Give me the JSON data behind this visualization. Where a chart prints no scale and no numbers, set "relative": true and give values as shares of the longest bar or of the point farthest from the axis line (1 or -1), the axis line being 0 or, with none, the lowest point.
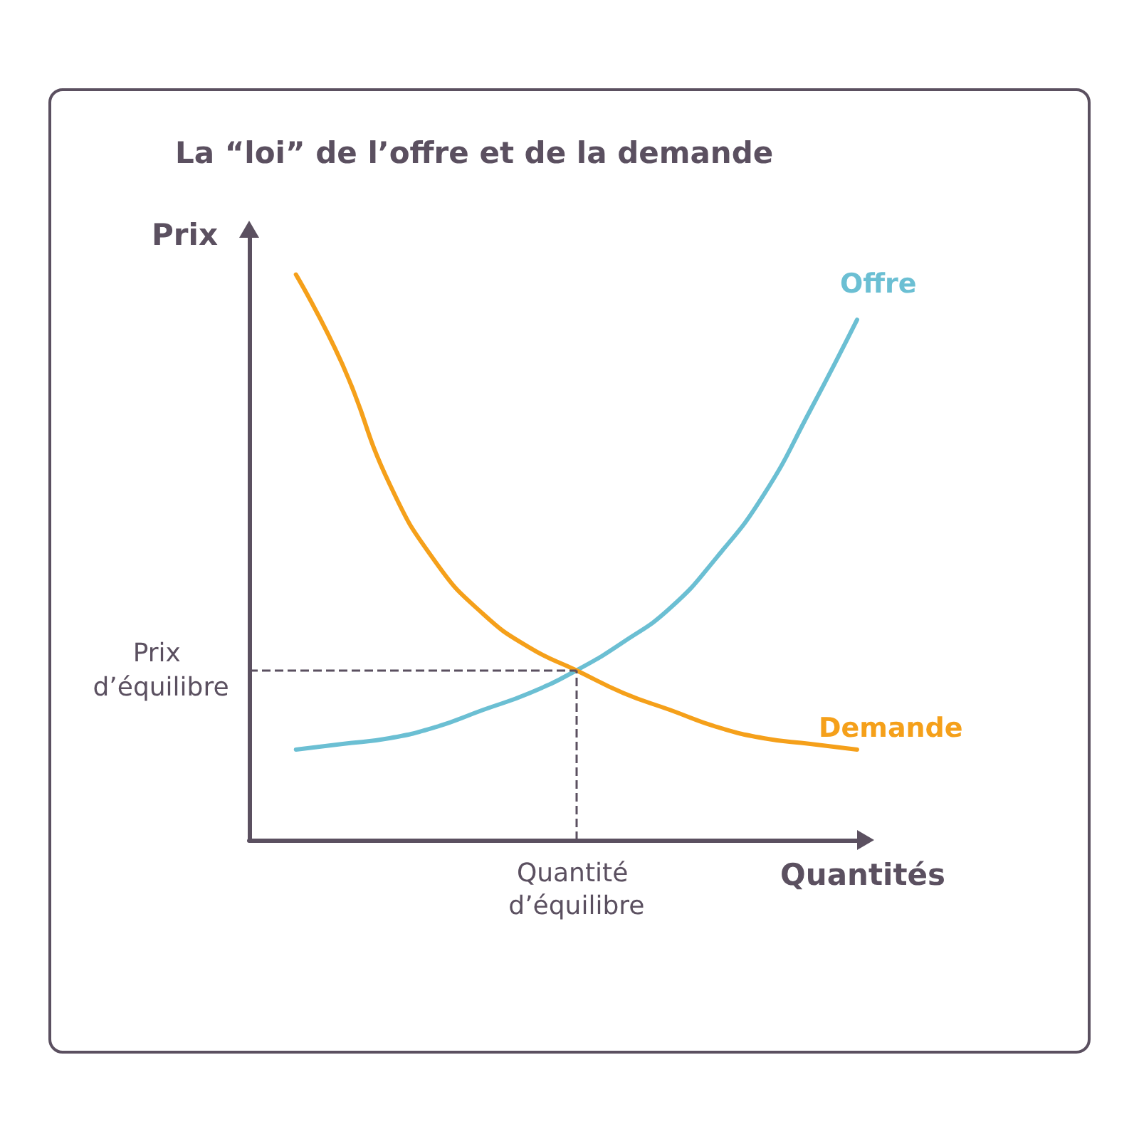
{
  "chart_data": {
    "type": "line",
    "title": "La “loi” de l’offre et de la demande",
    "xlabel": "Quantités",
    "ylabel": "Prix",
    "relative": true,
    "legend": false,
    "grid": false,
    "marker": "none",
    "line_style": "solid",
    "categories": [
      null,
      null,
      null,
      null,
      null,
      null,
      null,
      null,
      null,
      null,
      null,
      null,
      null,
      null
    ],
    "series": [
      {
        "name": "Offre",
        "color": "#6bbfd3",
        "values": [
          null,
          0.16,
          0.17,
          0.18,
          0.2,
          0.23,
          0.26,
          0.3,
          0.35,
          0.41,
          0.5,
          0.61,
          0.76,
          0.92
        ]
      },
      {
        "name": "Demande",
        "color": "#f5a01a",
        "values": [
          null,
          1.0,
          0.84,
          0.63,
          0.49,
          0.4,
          0.34,
          0.3,
          0.26,
          0.23,
          0.2,
          0.18,
          0.17,
          0.16
        ]
      }
    ],
    "ref_lines": [
      {
        "axis": "y",
        "value": 0.3,
        "label": "Prix d’équilibre",
        "color": "#5b5060",
        "line_style": "dashed"
      }
    ],
    "annotations": [
      "Quantité d’équilibre"
    ]
  }
}
